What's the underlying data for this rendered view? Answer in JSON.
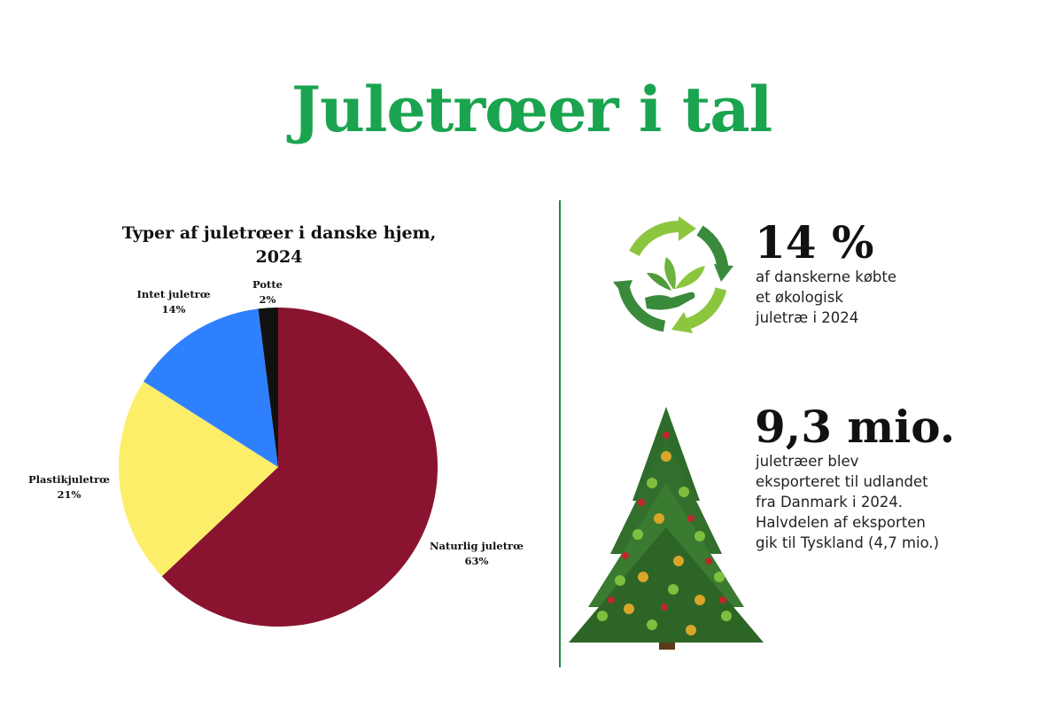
{
  "header": {
    "title": "Juletrœer i tal"
  },
  "chart_data": {
    "type": "pie",
    "title": "Typer af juletrœer i danske hjem, 2024",
    "slices": [
      {
        "label": "Naturlig juletrœ",
        "percent_label": "63%",
        "value": 63,
        "color": "#8a1430"
      },
      {
        "label": "Plastikjuletrœ",
        "percent_label": "21%",
        "value": 21,
        "color": "#fdee6a"
      },
      {
        "label": "Intet juletrœ",
        "percent_label": "14%",
        "value": 14,
        "color": "#2f80ff"
      },
      {
        "label": "Potte",
        "percent_label": "2%",
        "value": 2,
        "color": "#111111"
      }
    ],
    "start_angle_deg": 0,
    "direction": "clockwise"
  },
  "stats": [
    {
      "value": "14 %",
      "text": "af danskerne købte\net økologisk\njuletræ i 2024",
      "icon": "recycle-leaf-hand-icon"
    },
    {
      "value": "9,3 mio.",
      "text": "juletræer blev\neksporteret til udlandet\nfra Danmark i 2024.\nHalvdelen af eksporten\ngik til Tyskland (4,7 mio.)",
      "icon": "christmas-tree-icon"
    }
  ],
  "colors": {
    "title_green": "#1aa44f",
    "divider": "#1e8a45"
  }
}
